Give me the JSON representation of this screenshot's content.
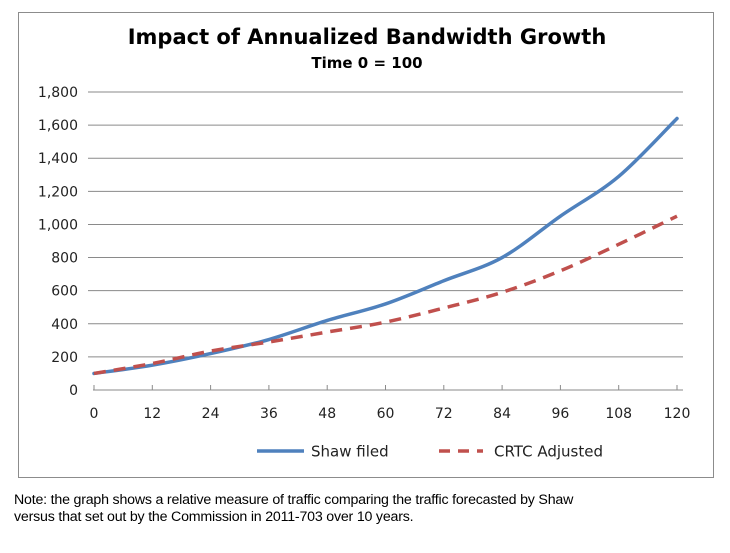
{
  "chart_data": {
    "type": "line",
    "title": "Impact of Annualized Bandwidth Growth",
    "subtitle": "Time 0 = 100",
    "xlabel": "",
    "ylabel": "",
    "x": [
      0,
      12,
      24,
      36,
      48,
      60,
      72,
      84,
      96,
      108,
      120
    ],
    "x_ticks": [
      "0",
      "12",
      "24",
      "36",
      "48",
      "60",
      "72",
      "84",
      "96",
      "108",
      "120"
    ],
    "xlim": [
      0,
      120
    ],
    "ylim": [
      0,
      1800
    ],
    "y_ticks": [
      0,
      200,
      400,
      600,
      800,
      1000,
      1200,
      1400,
      1600,
      1800
    ],
    "y_tick_labels": [
      "0",
      "200",
      "400",
      "600",
      "800",
      "1,000",
      "1,200",
      "1,400",
      "1,600",
      "1,800"
    ],
    "grid": "horizontal",
    "legend_position": "bottom",
    "series": [
      {
        "name": "Shaw filed",
        "style": "solid",
        "color": "#4F81BD",
        "values": [
          100,
          150,
          220,
          305,
          420,
          520,
          660,
          800,
          1050,
          1290,
          1640
        ]
      },
      {
        "name": "CRTC Adjusted",
        "style": "dashed",
        "color": "#C0504D",
        "values": [
          100,
          160,
          235,
          290,
          350,
          410,
          495,
          590,
          720,
          880,
          1050
        ]
      }
    ]
  },
  "note": {
    "line1": "Note:  the graph shows a relative measure of traffic comparing the traffic forecasted by Shaw",
    "line2": "versus that set out by the Commission in 2011-703 over 10 years."
  }
}
